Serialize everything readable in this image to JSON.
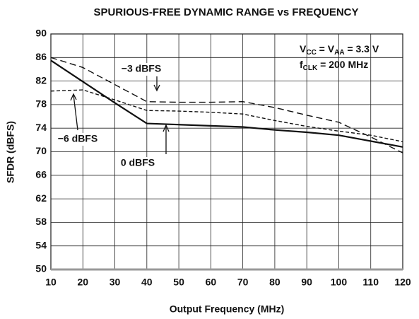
{
  "chart_data": {
    "type": "line",
    "title": "SPURIOUS-FREE DYNAMIC RANGE vs FREQUENCY",
    "x_label": "Output Frequency (MHz)",
    "y_label": "SFDR (dBFS)",
    "x": [
      10,
      20,
      30,
      40,
      50,
      60,
      70,
      80,
      90,
      100,
      110,
      120
    ],
    "series": [
      {
        "name": "0 dBFS",
        "color": "#111111",
        "dash": "solid",
        "values": [
          85.5,
          81.9,
          78.3,
          74.8,
          74.6,
          74.4,
          74.2,
          73.7,
          73.3,
          72.8,
          71.8,
          70.8
        ]
      },
      {
        "name": "−3 dBFS",
        "color": "#111111",
        "dash": "long",
        "values": [
          86.0,
          84.3,
          81.4,
          78.5,
          78.4,
          78.4,
          78.5,
          77.5,
          76.2,
          75.0,
          72.5,
          69.8
        ]
      },
      {
        "name": "−6 dBFS",
        "color": "#111111",
        "dash": "short",
        "values": [
          80.3,
          80.5,
          78.8,
          77.0,
          76.9,
          76.7,
          76.4,
          75.3,
          74.3,
          73.5,
          72.8,
          71.7
        ]
      }
    ],
    "conditions": [
      [
        "V",
        "CC",
        " = V",
        "AA",
        " = 3.3 V"
      ],
      [
        "f",
        "CLK",
        " = 200 MHz"
      ]
    ],
    "xlim": [
      10,
      120
    ],
    "xticks": [
      10,
      20,
      30,
      40,
      50,
      60,
      70,
      80,
      90,
      100,
      110,
      120
    ],
    "ylim": [
      50,
      90
    ],
    "yticks": [
      50,
      54,
      58,
      62,
      66,
      70,
      74,
      78,
      82,
      86,
      90
    ],
    "grid": true
  }
}
